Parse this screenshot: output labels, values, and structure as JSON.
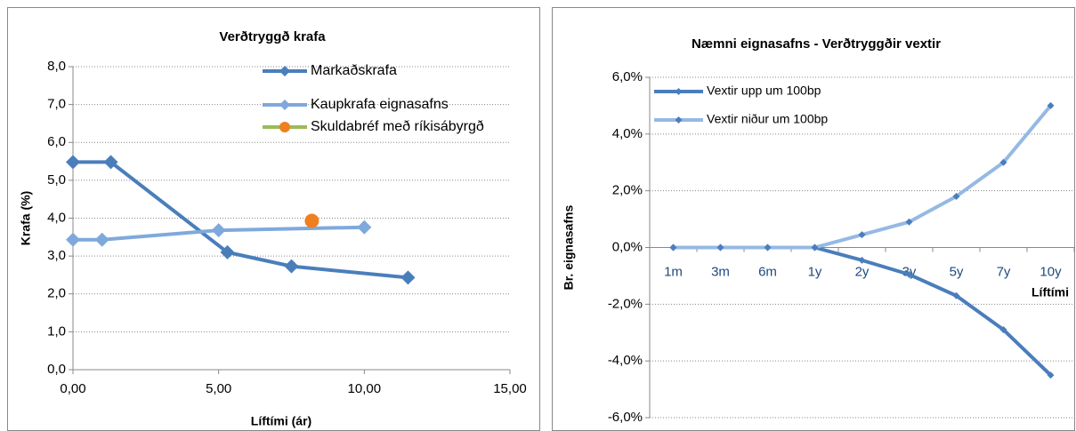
{
  "chart_data": [
    {
      "type": "scatter",
      "title": "Verðtryggð krafa",
      "x_label": "Líftími (ár)",
      "y_label": "Krafa (%)",
      "xlim": [
        0,
        15
      ],
      "xticks": [
        {
          "value": 0,
          "label": "0,00"
        },
        {
          "value": 5,
          "label": "5,00"
        },
        {
          "value": 10,
          "label": "10,00"
        },
        {
          "value": 15,
          "label": "15,00"
        }
      ],
      "ylim": [
        0,
        8
      ],
      "yticks": [
        {
          "value": 0,
          "label": "0,0"
        },
        {
          "value": 1,
          "label": "1,0"
        },
        {
          "value": 2,
          "label": "2,0"
        },
        {
          "value": 3,
          "label": "3,0"
        },
        {
          "value": 4,
          "label": "4,0"
        },
        {
          "value": 5,
          "label": "5,0"
        },
        {
          "value": 6,
          "label": "6,0"
        },
        {
          "value": 7,
          "label": "7,0"
        },
        {
          "value": 8,
          "label": "8,0"
        }
      ],
      "grid": true,
      "series": [
        {
          "name": "Markaðskrafa",
          "color": "#4a7ebb",
          "marker": "diamond",
          "marker_color": "#4a7ebb",
          "x": [
            0,
            1.3,
            5.3,
            7.5,
            11.5
          ],
          "values": [
            5.48,
            5.48,
            3.1,
            2.73,
            2.43
          ]
        },
        {
          "name": "Kaupkrafa eignasafns",
          "color": "#7fa9dc",
          "marker": "diamond",
          "marker_color": "#7fa9dc",
          "x": [
            0,
            1,
            5,
            10
          ],
          "values": [
            3.43,
            3.43,
            3.68,
            3.76
          ]
        },
        {
          "name": "Skuldabréf með ríkisábyrgð",
          "color": "#9bbb59",
          "marker": "circle",
          "marker_color": "#f07f1f",
          "x": [
            8.2
          ],
          "values": [
            3.93
          ]
        }
      ]
    },
    {
      "type": "line",
      "title": "Næmni eignasafns - Verðtryggðir vextir",
      "x_label": "Líftími",
      "y_label": "Br. eignasafns",
      "categories": [
        "1m",
        "3m",
        "6m",
        "1y",
        "2y",
        "3y",
        "5y",
        "7y",
        "10y"
      ],
      "ylim": [
        -6,
        6
      ],
      "yticks": [
        {
          "value": -6,
          "label": "-6,0%"
        },
        {
          "value": -4,
          "label": "-4,0%"
        },
        {
          "value": -2,
          "label": "-2,0%"
        },
        {
          "value": 0,
          "label": "0,0%"
        },
        {
          "value": 2,
          "label": "2,0%"
        },
        {
          "value": 4,
          "label": "4,0%"
        },
        {
          "value": 6,
          "label": "6,0%"
        }
      ],
      "grid": true,
      "series": [
        {
          "name": "Vextir upp um 100bp",
          "color": "#4a7ebb",
          "marker": "diamond",
          "marker_color": "#4a7ebb",
          "values": [
            0,
            0,
            0,
            0,
            -0.45,
            -0.95,
            -1.7,
            -2.9,
            -4.5
          ]
        },
        {
          "name": "Vextir niður um 100bp",
          "color": "#95b9e4",
          "marker": "diamond",
          "marker_color": "#4a7ebb",
          "values": [
            0,
            0,
            0,
            0,
            0.45,
            0.9,
            1.8,
            3.0,
            5.0
          ]
        }
      ]
    }
  ]
}
